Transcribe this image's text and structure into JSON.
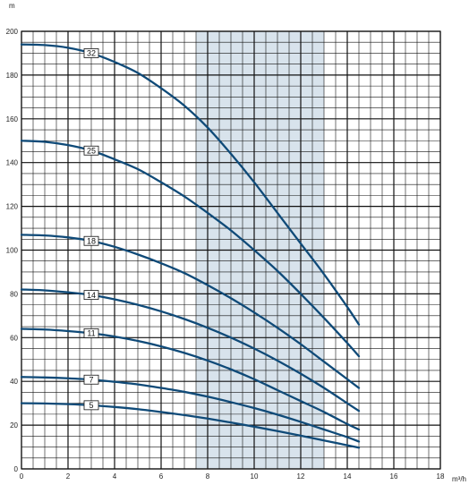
{
  "chart_data": {
    "type": "line",
    "title": "",
    "xlabel": "m³/h",
    "ylabel": "m",
    "xlim": [
      0,
      18
    ],
    "ylim": [
      0,
      200
    ],
    "x_ticks": [
      0,
      2,
      4,
      6,
      8,
      10,
      12,
      14,
      16,
      18
    ],
    "y_ticks": [
      0,
      20,
      40,
      60,
      80,
      100,
      120,
      140,
      160,
      180,
      200
    ],
    "x_tick_labels": [
      "0",
      "2",
      "4",
      "6",
      "8",
      "10",
      "12",
      "14",
      "16",
      "18"
    ],
    "y_tick_labels": [
      "0",
      "20",
      "40",
      "60",
      "80",
      "100",
      "120",
      "140",
      "160",
      "180",
      "200"
    ],
    "grid": true,
    "highlight_band": {
      "x_from": 7.5,
      "x_to": 13,
      "color": "#d8e3ec"
    },
    "colors": {
      "curve": "#0f4a78",
      "grid": "#111111",
      "band": "#d8e3ec"
    },
    "series": [
      {
        "name": "32",
        "label_x": 3,
        "x": [
          0,
          1,
          2,
          3,
          4,
          5,
          6,
          7,
          8,
          9,
          10,
          11,
          12,
          13,
          14,
          14.5
        ],
        "y": [
          194,
          193.7,
          192.5,
          190,
          186,
          181,
          174,
          166,
          156,
          144,
          131,
          117,
          103,
          89,
          74,
          66
        ]
      },
      {
        "name": "25",
        "label_x": 3,
        "x": [
          0,
          1,
          2,
          3,
          4,
          5,
          6,
          7,
          8,
          9,
          10,
          11,
          12,
          13,
          14,
          14.5
        ],
        "y": [
          150,
          149.5,
          148,
          145.5,
          141.5,
          137,
          131,
          124.5,
          117,
          109,
          100,
          90.5,
          80,
          69,
          57.5,
          51.5
        ]
      },
      {
        "name": "18",
        "label_x": 3,
        "x": [
          0,
          1,
          2,
          3,
          4,
          5,
          6,
          7,
          8,
          9,
          10,
          11,
          12,
          13,
          14,
          14.5
        ],
        "y": [
          107,
          106.7,
          105.8,
          104.2,
          101.5,
          98,
          94,
          89.5,
          84,
          78,
          71.5,
          64.5,
          57,
          49,
          41,
          37
        ]
      },
      {
        "name": "14",
        "label_x": 3,
        "x": [
          0,
          1,
          2,
          3,
          4,
          5,
          6,
          7,
          8,
          9,
          10,
          11,
          12,
          13,
          14,
          14.5
        ],
        "y": [
          82,
          81.6,
          80.7,
          79.5,
          77.5,
          75,
          72,
          68.5,
          64.5,
          60,
          55,
          49.5,
          43.5,
          37,
          30,
          26.5
        ]
      },
      {
        "name": "11",
        "label_x": 3,
        "x": [
          0,
          1,
          2,
          3,
          4,
          5,
          6,
          7,
          8,
          9,
          10,
          11,
          12,
          13,
          14,
          14.5
        ],
        "y": [
          64,
          63.7,
          63,
          62,
          60.5,
          58.5,
          56,
          53,
          49.5,
          45.5,
          41,
          36,
          31,
          26,
          20.5,
          18
        ]
      },
      {
        "name": "7",
        "label_x": 3,
        "x": [
          0,
          1,
          2,
          3,
          4,
          5,
          6,
          7,
          8,
          9,
          10,
          11,
          12,
          13,
          14,
          14.5
        ],
        "y": [
          42,
          41.8,
          41.4,
          40.8,
          39.8,
          38.6,
          37,
          35.2,
          33,
          30.5,
          27.8,
          24.8,
          21.5,
          18,
          14.5,
          12.5
        ]
      },
      {
        "name": "5",
        "label_x": 3,
        "x": [
          0,
          1,
          2,
          3,
          4,
          5,
          6,
          7,
          8,
          9,
          10,
          11,
          12,
          13,
          14,
          14.5
        ],
        "y": [
          30,
          29.9,
          29.6,
          29.1,
          28.3,
          27.3,
          26,
          24.6,
          23,
          21.2,
          19.3,
          17.3,
          15.2,
          13,
          10.8,
          9.7
        ]
      }
    ]
  }
}
